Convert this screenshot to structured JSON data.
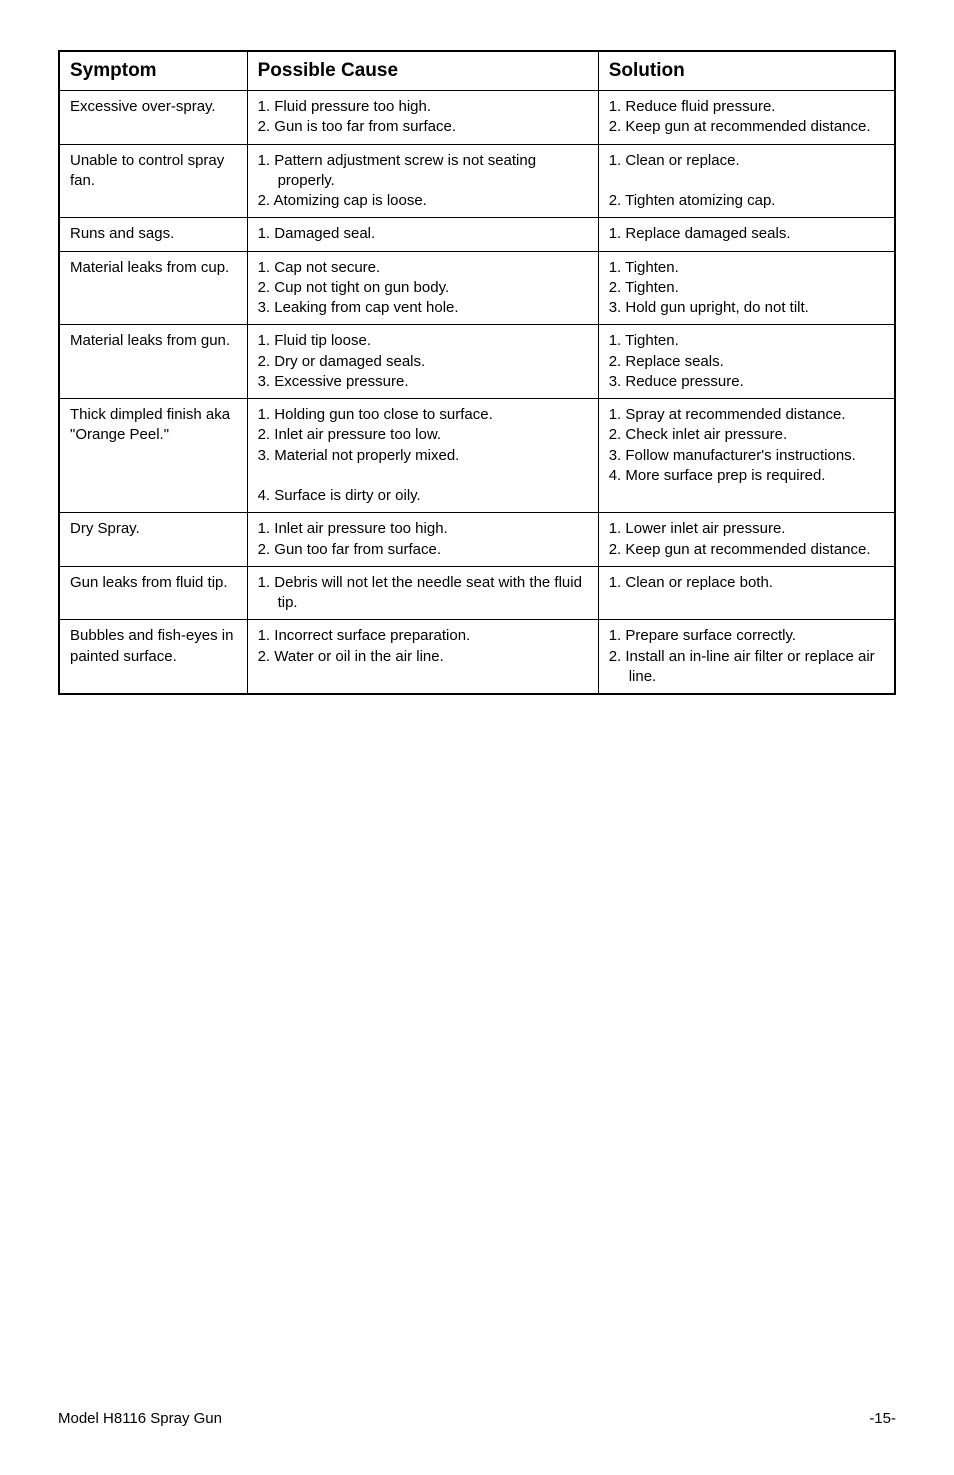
{
  "table": {
    "headers": {
      "symptom": "Symptom",
      "cause": "Possible Cause",
      "solution": "Solution"
    },
    "rows": [
      {
        "symptom": [
          "Excessive over-spray."
        ],
        "cause": [
          "1. Fluid pressure too high.",
          "2. Gun is too far from surface."
        ],
        "solution": [
          "1. Reduce fluid pressure.",
          "2. Keep gun at recommended distance."
        ]
      },
      {
        "symptom": [
          "Unable to control spray fan."
        ],
        "cause": [
          "1. Pattern adjustment screw is not seating properly.",
          "2. Atomizing cap is loose."
        ],
        "solution": [
          "1. Clean or replace.",
          " ",
          "2. Tighten atomizing cap."
        ]
      },
      {
        "symptom": [
          "Runs and sags."
        ],
        "cause": [
          "1. Damaged seal."
        ],
        "solution": [
          "1. Replace damaged seals."
        ]
      },
      {
        "symptom": [
          "Material leaks from cup."
        ],
        "cause": [
          "1. Cap not secure.",
          "2. Cup not tight on gun body.",
          "3. Leaking from cap vent hole."
        ],
        "solution": [
          "1. Tighten.",
          "2. Tighten.",
          "3. Hold gun upright, do not tilt."
        ]
      },
      {
        "symptom": [
          "Material leaks from gun."
        ],
        "cause": [
          "1. Fluid tip loose.",
          "2. Dry or damaged seals.",
          "3. Excessive pressure."
        ],
        "solution": [
          "1. Tighten.",
          "2. Replace seals.",
          "3. Reduce pressure."
        ]
      },
      {
        "symptom": [
          "Thick dimpled finish aka \"Orange Peel.\""
        ],
        "cause": [
          "1. Holding gun too close to surface.",
          "2. Inlet air pressure too low.",
          "3. Material not properly mixed.",
          " ",
          "4. Surface is dirty or oily."
        ],
        "solution": [
          "1. Spray at recommended distance.",
          "2. Check inlet air pressure.",
          "3. Follow manufacturer's instructions.",
          "4. More surface prep is required."
        ]
      },
      {
        "symptom": [
          "Dry Spray."
        ],
        "cause": [
          "1. Inlet air pressure too high.",
          "2. Gun too far from surface."
        ],
        "solution": [
          "1. Lower inlet air pressure.",
          "2. Keep gun at recommended distance."
        ]
      },
      {
        "symptom": [
          "Gun leaks from fluid tip."
        ],
        "cause": [
          "1. Debris will not let the needle seat with the fluid tip."
        ],
        "solution": [
          "1. Clean or replace both."
        ]
      },
      {
        "symptom": [
          "Bubbles and fish-eyes in painted surface."
        ],
        "cause": [
          "1. Incorrect surface preparation.",
          "2. Water or oil in the air line."
        ],
        "solution": [
          "1. Prepare surface correctly.",
          "2. Install an in-line air filter or replace air line."
        ]
      }
    ]
  },
  "footer": {
    "left": "Model H8116 Spray Gun",
    "right": "-15-"
  }
}
